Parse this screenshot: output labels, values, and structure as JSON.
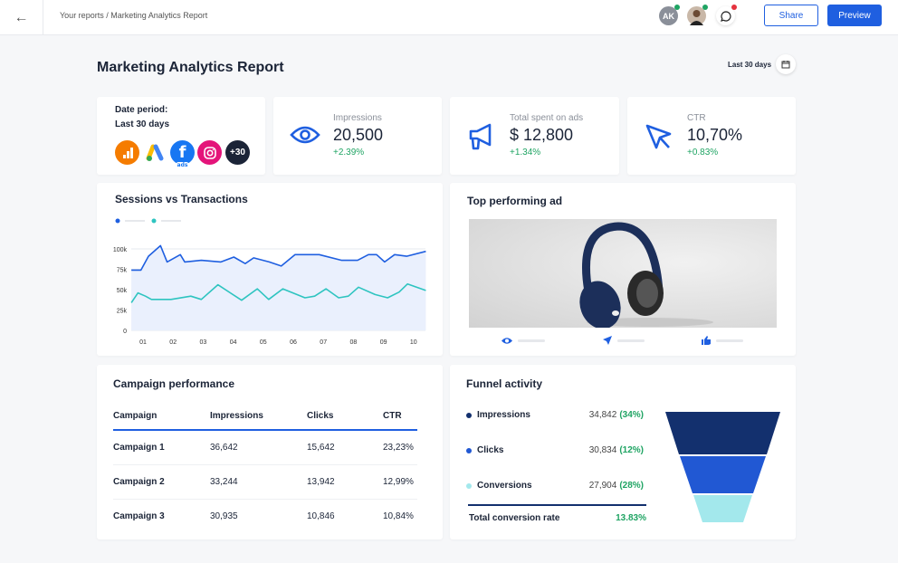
{
  "header": {
    "back_icon": "arrow-left-icon",
    "breadcrumb": "Your reports / Marketing Analytics Report",
    "avatar_initials": "AK",
    "share": "Share",
    "preview": "Preview"
  },
  "colors": {
    "accent": "#1f5fe0",
    "positive": "#1fa463",
    "navy": "#13306e",
    "teal": "#2ec4c0"
  },
  "page": {
    "title": "Marketing Analytics Report",
    "date_range": "Last 30 days"
  },
  "date_card": {
    "label": "Date period:",
    "value": "Last 30 days",
    "sources": [
      "google-analytics",
      "google-ads",
      "facebook-ads",
      "instagram"
    ],
    "more": "+30",
    "fb_sub": "ads"
  },
  "kpis": [
    {
      "label": "Impressions",
      "value": "20,500",
      "change": "+2.39%",
      "icon": "eye-icon"
    },
    {
      "label": "Total spent on ads",
      "value": "$ 12,800",
      "change": "+1.34%",
      "icon": "megaphone-icon"
    },
    {
      "label": "CTR",
      "value": "10,70%",
      "change": "+0.83%",
      "icon": "cursor-icon"
    }
  ],
  "sessions": {
    "title": "Sessions vs Transactions"
  },
  "chart_data": {
    "type": "line",
    "title": "Sessions vs Transactions",
    "xticks": [
      "01",
      "02",
      "03",
      "04",
      "05",
      "06",
      "07",
      "08",
      "09",
      "10"
    ],
    "yticks": [
      "0",
      "25k",
      "50k",
      "75k",
      "100k"
    ],
    "ylim": [
      0,
      100
    ],
    "grid": true,
    "series": [
      {
        "color": "#1f5fe0",
        "area": true,
        "x": [
          0.61,
          0.93,
          1.18,
          1.58,
          1.8,
          2.24,
          2.39,
          2.94,
          3.59,
          4.02,
          4.4,
          4.68,
          5.2,
          5.6,
          6.06,
          6.86,
          7.61,
          8.14,
          8.5,
          8.77,
          9.04,
          9.37,
          9.77,
          10.41
        ],
        "y": [
          74,
          74,
          91,
          104,
          84,
          93,
          84,
          86,
          84,
          90,
          82,
          89,
          84,
          79,
          93,
          93,
          86,
          86,
          93,
          93,
          84,
          93,
          91,
          97
        ]
      },
      {
        "color": "#2ec4c0",
        "area": false,
        "x": [
          0.61,
          0.83,
          1.08,
          1.28,
          1.93,
          2.59,
          2.94,
          3.49,
          4.28,
          4.8,
          5.18,
          5.65,
          6.39,
          6.71,
          7.09,
          7.51,
          7.83,
          8.17,
          8.72,
          9.14,
          9.52,
          9.8,
          10.41
        ],
        "y": [
          34,
          46,
          42,
          38,
          38,
          42,
          38,
          56,
          37,
          51,
          38,
          51,
          40,
          42,
          51,
          40,
          42,
          53,
          44,
          40,
          47,
          57,
          49
        ]
      }
    ]
  },
  "top_ad": {
    "title": "Top performing ad",
    "stats_icons": [
      "eye-icon",
      "send-icon",
      "thumbs-up-icon"
    ]
  },
  "campaign": {
    "title": "Campaign performance",
    "headers": [
      "Campaign",
      "Impressions",
      "Clicks",
      "CTR"
    ],
    "rows": [
      [
        "Campaign 1",
        "36,642",
        "15,642",
        "23,23%"
      ],
      [
        "Campaign 2",
        "33,244",
        "13,942",
        "12,99%"
      ],
      [
        "Campaign 3",
        "30,935",
        "10,846",
        "10,84%"
      ]
    ]
  },
  "funnel": {
    "title": "Funnel activity",
    "items": [
      {
        "label": "Impressions",
        "value": "34,842",
        "pct": "(34%)",
        "color": "#13306e"
      },
      {
        "label": "Clicks",
        "value": "30,834",
        "pct": "(12%)",
        "color": "#2158d3"
      },
      {
        "label": "Conversions",
        "value": "27,904",
        "pct": "(28%)",
        "color": "#a3e8ec"
      }
    ],
    "total_label": "Total conversion rate",
    "total_value": "13.83%"
  }
}
